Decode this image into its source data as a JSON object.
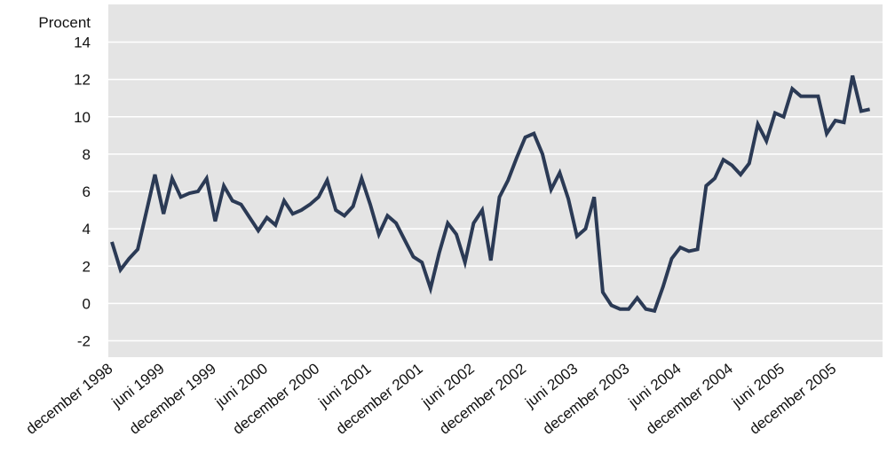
{
  "chart_data": {
    "type": "line",
    "ylabel": "Procent",
    "ylim": [
      -2,
      14
    ],
    "yticks": [
      -2,
      0,
      2,
      4,
      6,
      8,
      10,
      12,
      14
    ],
    "grid": true,
    "x_tick_labels": [
      "december 1998",
      "juni 1999",
      "december 1999",
      "juni 2000",
      "december 2000",
      "juni 2001",
      "december 2001",
      "juni 2002",
      "december 2002",
      "juni 2003",
      "december 2003",
      "juni 2004",
      "december 2004",
      "juni 2005",
      "december 2005"
    ],
    "x": [
      "1998-12",
      "1999-01",
      "1999-02",
      "1999-03",
      "1999-04",
      "1999-05",
      "1999-06",
      "1999-07",
      "1999-08",
      "1999-09",
      "1999-10",
      "1999-11",
      "1999-12",
      "2000-01",
      "2000-02",
      "2000-03",
      "2000-04",
      "2000-05",
      "2000-06",
      "2000-07",
      "2000-08",
      "2000-09",
      "2000-10",
      "2000-11",
      "2000-12",
      "2001-01",
      "2001-02",
      "2001-03",
      "2001-04",
      "2001-05",
      "2001-06",
      "2001-07",
      "2001-08",
      "2001-09",
      "2001-10",
      "2001-11",
      "2001-12",
      "2002-01",
      "2002-02",
      "2002-03",
      "2002-04",
      "2002-05",
      "2002-06",
      "2002-07",
      "2002-08",
      "2002-09",
      "2002-10",
      "2002-11",
      "2002-12",
      "2003-01",
      "2003-02",
      "2003-03",
      "2003-04",
      "2003-05",
      "2003-06",
      "2003-07",
      "2003-08",
      "2003-09",
      "2003-10",
      "2003-11",
      "2003-12",
      "2004-01",
      "2004-02",
      "2004-03",
      "2004-04",
      "2004-05",
      "2004-06",
      "2004-07",
      "2004-08",
      "2004-09",
      "2004-10",
      "2004-11",
      "2004-12",
      "2005-01",
      "2005-02",
      "2005-03",
      "2005-04",
      "2005-05",
      "2005-06",
      "2005-07",
      "2005-08",
      "2005-09",
      "2005-10",
      "2005-11",
      "2005-12",
      "2006-01",
      "2006-02",
      "2006-03",
      "2006-04"
    ],
    "series": [
      {
        "color": "#2b3a55",
        "values": [
          3.3,
          1.8,
          2.4,
          2.9,
          4.9,
          6.9,
          4.8,
          6.7,
          5.7,
          5.9,
          6.0,
          6.7,
          4.4,
          6.3,
          5.5,
          5.3,
          4.6,
          3.9,
          4.6,
          4.2,
          5.5,
          4.8,
          5.0,
          5.3,
          5.7,
          6.6,
          5.0,
          4.7,
          5.2,
          6.7,
          5.3,
          3.7,
          4.7,
          4.3,
          3.4,
          2.5,
          2.2,
          0.8,
          2.7,
          4.3,
          3.7,
          2.2,
          4.3,
          5.0,
          2.3,
          5.7,
          6.6,
          7.8,
          8.9,
          9.1,
          8.0,
          6.1,
          7.0,
          5.6,
          3.6,
          4.0,
          5.7,
          0.6,
          -0.1,
          -0.3,
          -0.3,
          0.3,
          -0.3,
          -0.4,
          0.9,
          2.4,
          3.0,
          2.8,
          2.9,
          6.3,
          6.7,
          7.7,
          7.4,
          6.9,
          7.5,
          9.6,
          8.7,
          10.2,
          10.0,
          11.5,
          11.1,
          11.1,
          11.1,
          9.1,
          9.8,
          9.7,
          12.2,
          10.3,
          10.4
        ]
      }
    ]
  }
}
